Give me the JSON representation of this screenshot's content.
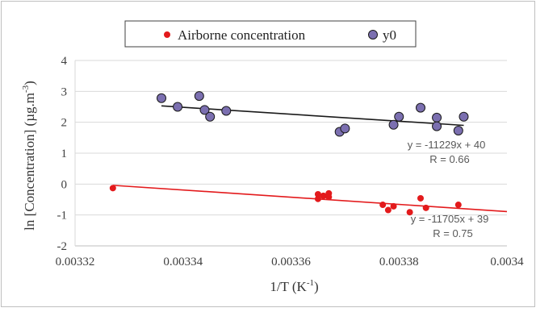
{
  "chart_data": {
    "type": "scatter",
    "xlabel": "1/T (K",
    "xlabel_sup": "-1",
    "xlabel_end": ")",
    "ylabel": "ln [Concentration] (µg.m",
    "ylabel_sup": "-3",
    "ylabel_end": ")",
    "xlim": [
      0.00332,
      0.0034
    ],
    "ylim": [
      -2,
      4
    ],
    "x_ticks": [
      "0.00332",
      "0.00334",
      "0.00336",
      "0.00338",
      "0.0034"
    ],
    "y_ticks": [
      "-2",
      "-1",
      "0",
      "1",
      "2",
      "3",
      "4"
    ],
    "grid": "horizontal",
    "legend_position": "top",
    "series": [
      {
        "name": "Airborne concentration",
        "color": "#e31a1c",
        "marker": "filled-circle",
        "points": [
          [
            0.003327,
            -0.13
          ],
          [
            0.003365,
            -0.33
          ],
          [
            0.003365,
            -0.48
          ],
          [
            0.003366,
            -0.38
          ],
          [
            0.003367,
            -0.3
          ],
          [
            0.003367,
            -0.42
          ],
          [
            0.003377,
            -0.67
          ],
          [
            0.003378,
            -0.84
          ],
          [
            0.003379,
            -0.72
          ],
          [
            0.003382,
            -0.91
          ],
          [
            0.003384,
            -0.46
          ],
          [
            0.003385,
            -0.77
          ],
          [
            0.003391,
            -0.67
          ]
        ],
        "trendline": {
          "x": [
            0.003327,
            0.0034
          ],
          "y": [
            -0.04,
            -0.89
          ]
        },
        "equation": "y = -11705x + 39",
        "r": "R = 0.75"
      },
      {
        "name": "y0",
        "color": "#7b6fb0",
        "marker": "circle-outlined",
        "points": [
          [
            0.003336,
            2.78
          ],
          [
            0.003339,
            2.5
          ],
          [
            0.003343,
            2.85
          ],
          [
            0.003344,
            2.4
          ],
          [
            0.003345,
            2.18
          ],
          [
            0.003348,
            2.37
          ],
          [
            0.003369,
            1.69
          ],
          [
            0.00337,
            1.8
          ],
          [
            0.003379,
            1.92
          ],
          [
            0.00338,
            2.18
          ],
          [
            0.003384,
            2.47
          ],
          [
            0.003387,
            2.15
          ],
          [
            0.003387,
            1.87
          ],
          [
            0.003391,
            1.73
          ],
          [
            0.003392,
            2.18
          ]
        ],
        "trendline": {
          "x": [
            0.003336,
            0.003392
          ],
          "y": [
            2.53,
            1.9
          ]
        },
        "equation": "y = -11229x + 40",
        "r": "R = 0.66"
      }
    ]
  }
}
